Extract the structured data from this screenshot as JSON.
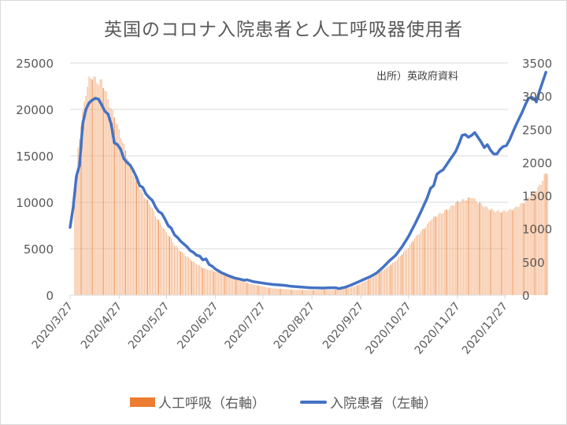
{
  "title": "英国のコロナ入院患者と人工呼吸器使用者",
  "source_note": "出所）英政府資料",
  "legend": {
    "bar_label": "人工呼吸（右軸）",
    "line_label": "入院患者（左軸）"
  },
  "colors": {
    "bar": "#ED7D31",
    "bar_light": "#F4B183",
    "line": "#4472C4",
    "grid": "#d9d9d9",
    "text": "#595959"
  },
  "chart_data": {
    "type": "bar+line",
    "title": "英国のコロナ入院患者と人工呼吸器使用者",
    "xlabel": "",
    "ylabel_left": "入院患者",
    "ylabel_right": "人工呼吸",
    "x_tick_labels": [
      "2020/3/27",
      "2020/4/27",
      "2020/5/27",
      "2020/6/27",
      "2020/7/27",
      "2020/8/27",
      "2020/9/27",
      "2020/10/27",
      "2020/11/27",
      "2020/12/27"
    ],
    "y_left_ticks": [
      "0",
      "5000",
      "10000",
      "15000",
      "20000",
      "25000"
    ],
    "y_right_ticks": [
      "0",
      "500",
      "1000",
      "1500",
      "2000",
      "2500",
      "3000",
      "3500"
    ],
    "ylim_left": [
      0,
      25000
    ],
    "ylim_right": [
      0,
      3500
    ],
    "grid": true,
    "legend_position": "bottom",
    "annotation": "出所）英政府資料",
    "x_start": "2020/3/27",
    "x_end": "2020/12/29",
    "series": [
      {
        "name": "人工呼吸（右軸）",
        "axis": "right",
        "type": "bar",
        "color": "#ED7D31",
        "points_day_value": [
          [
            0,
            0
          ],
          [
            3,
            1400
          ],
          [
            5,
            2200
          ],
          [
            8,
            2750
          ],
          [
            10,
            3050
          ],
          [
            12,
            3250
          ],
          [
            14,
            3300
          ],
          [
            16,
            3250
          ],
          [
            18,
            3200
          ],
          [
            20,
            3230
          ],
          [
            22,
            3100
          ],
          [
            24,
            2950
          ],
          [
            26,
            2800
          ],
          [
            28,
            2700
          ],
          [
            30,
            2550
          ],
          [
            32,
            2400
          ],
          [
            34,
            2250
          ],
          [
            36,
            2100
          ],
          [
            38,
            1950
          ],
          [
            40,
            1830
          ],
          [
            42,
            1700
          ],
          [
            45,
            1570
          ],
          [
            48,
            1450
          ],
          [
            51,
            1350
          ],
          [
            54,
            1200
          ],
          [
            57,
            1080
          ],
          [
            60,
            980
          ],
          [
            63,
            880
          ],
          [
            66,
            760
          ],
          [
            70,
            660
          ],
          [
            74,
            580
          ],
          [
            78,
            500
          ],
          [
            82,
            440
          ],
          [
            86,
            390
          ],
          [
            90,
            370
          ],
          [
            94,
            340
          ],
          [
            98,
            310
          ],
          [
            102,
            270
          ],
          [
            106,
            230
          ],
          [
            110,
            200
          ],
          [
            114,
            170
          ],
          [
            118,
            150
          ],
          [
            122,
            130
          ],
          [
            126,
            110
          ],
          [
            130,
            100
          ],
          [
            134,
            95
          ],
          [
            138,
            85
          ],
          [
            142,
            80
          ],
          [
            146,
            80
          ],
          [
            150,
            78
          ],
          [
            154,
            75
          ],
          [
            158,
            80
          ],
          [
            162,
            80
          ],
          [
            166,
            78
          ],
          [
            170,
            85
          ],
          [
            174,
            95
          ],
          [
            178,
            120
          ],
          [
            182,
            150
          ],
          [
            186,
            200
          ],
          [
            190,
            250
          ],
          [
            194,
            320
          ],
          [
            198,
            380
          ],
          [
            202,
            440
          ],
          [
            206,
            520
          ],
          [
            210,
            620
          ],
          [
            214,
            720
          ],
          [
            218,
            860
          ],
          [
            222,
            960
          ],
          [
            226,
            1060
          ],
          [
            228,
            1140
          ],
          [
            232,
            1200
          ],
          [
            236,
            1250
          ],
          [
            240,
            1310
          ],
          [
            244,
            1390
          ],
          [
            248,
            1430
          ],
          [
            252,
            1450
          ],
          [
            254,
            1480
          ],
          [
            256,
            1440
          ],
          [
            258,
            1400
          ],
          [
            262,
            1340
          ],
          [
            266,
            1290
          ],
          [
            270,
            1260
          ],
          [
            274,
            1260
          ],
          [
            278,
            1280
          ],
          [
            282,
            1320
          ],
          [
            286,
            1380
          ],
          [
            290,
            1470
          ],
          [
            294,
            1560
          ],
          [
            298,
            1680
          ],
          [
            300,
            1800
          ],
          [
            302,
            1850
          ]
        ]
      },
      {
        "name": "入院患者（左軸）",
        "axis": "left",
        "type": "line",
        "color": "#4472C4",
        "points_day_value": [
          [
            0,
            7300
          ],
          [
            2,
            9500
          ],
          [
            4,
            12800
          ],
          [
            6,
            14000
          ],
          [
            8,
            18500
          ],
          [
            10,
            20000
          ],
          [
            12,
            20700
          ],
          [
            14,
            21000
          ],
          [
            16,
            21200
          ],
          [
            18,
            21100
          ],
          [
            19,
            20800
          ],
          [
            20,
            20500
          ],
          [
            22,
            19800
          ],
          [
            24,
            19500
          ],
          [
            26,
            18400
          ],
          [
            28,
            16400
          ],
          [
            30,
            16200
          ],
          [
            32,
            15700
          ],
          [
            34,
            14700
          ],
          [
            36,
            14300
          ],
          [
            38,
            14000
          ],
          [
            40,
            13400
          ],
          [
            42,
            12700
          ],
          [
            44,
            11800
          ],
          [
            46,
            11600
          ],
          [
            48,
            10900
          ],
          [
            50,
            10500
          ],
          [
            52,
            10200
          ],
          [
            54,
            9500
          ],
          [
            56,
            9000
          ],
          [
            58,
            8800
          ],
          [
            60,
            8200
          ],
          [
            62,
            7500
          ],
          [
            64,
            7200
          ],
          [
            66,
            6500
          ],
          [
            68,
            6200
          ],
          [
            70,
            5800
          ],
          [
            72,
            5500
          ],
          [
            74,
            5200
          ],
          [
            76,
            4800
          ],
          [
            78,
            4600
          ],
          [
            80,
            4300
          ],
          [
            82,
            4200
          ],
          [
            84,
            3800
          ],
          [
            86,
            3900
          ],
          [
            88,
            3300
          ],
          [
            90,
            3100
          ],
          [
            92,
            2800
          ],
          [
            94,
            2600
          ],
          [
            96,
            2400
          ],
          [
            98,
            2250
          ],
          [
            100,
            2100
          ],
          [
            104,
            1850
          ],
          [
            108,
            1700
          ],
          [
            110,
            1600
          ],
          [
            112,
            1650
          ],
          [
            116,
            1450
          ],
          [
            120,
            1350
          ],
          [
            124,
            1250
          ],
          [
            128,
            1150
          ],
          [
            132,
            1100
          ],
          [
            136,
            1050
          ],
          [
            140,
            950
          ],
          [
            144,
            900
          ],
          [
            148,
            850
          ],
          [
            152,
            800
          ],
          [
            156,
            780
          ],
          [
            160,
            760
          ],
          [
            164,
            800
          ],
          [
            168,
            800
          ],
          [
            170,
            700
          ],
          [
            174,
            850
          ],
          [
            178,
            1100
          ],
          [
            182,
            1400
          ],
          [
            186,
            1700
          ],
          [
            190,
            2000
          ],
          [
            194,
            2400
          ],
          [
            198,
            3000
          ],
          [
            202,
            3700
          ],
          [
            206,
            4300
          ],
          [
            210,
            5200
          ],
          [
            214,
            6300
          ],
          [
            218,
            7600
          ],
          [
            222,
            9000
          ],
          [
            226,
            10500
          ],
          [
            228,
            11500
          ],
          [
            230,
            11800
          ],
          [
            232,
            13000
          ],
          [
            234,
            13300
          ],
          [
            236,
            13500
          ],
          [
            238,
            14000
          ],
          [
            240,
            14500
          ],
          [
            242,
            15000
          ],
          [
            244,
            15500
          ],
          [
            246,
            16300
          ],
          [
            248,
            17200
          ],
          [
            250,
            17300
          ],
          [
            252,
            17000
          ],
          [
            254,
            17200
          ],
          [
            256,
            17500
          ],
          [
            258,
            17000
          ],
          [
            260,
            16500
          ],
          [
            262,
            15900
          ],
          [
            264,
            16200
          ],
          [
            266,
            15600
          ],
          [
            268,
            15200
          ],
          [
            270,
            15200
          ],
          [
            272,
            15700
          ],
          [
            274,
            16000
          ],
          [
            276,
            16100
          ],
          [
            278,
            16700
          ],
          [
            280,
            17500
          ],
          [
            282,
            18300
          ],
          [
            284,
            19000
          ],
          [
            286,
            19700
          ],
          [
            288,
            20500
          ],
          [
            290,
            21200
          ],
          [
            292,
            21300
          ],
          [
            294,
            21100
          ],
          [
            295,
            20800
          ],
          [
            297,
            22000
          ],
          [
            299,
            23000
          ],
          [
            301,
            24000
          ]
        ]
      }
    ]
  }
}
